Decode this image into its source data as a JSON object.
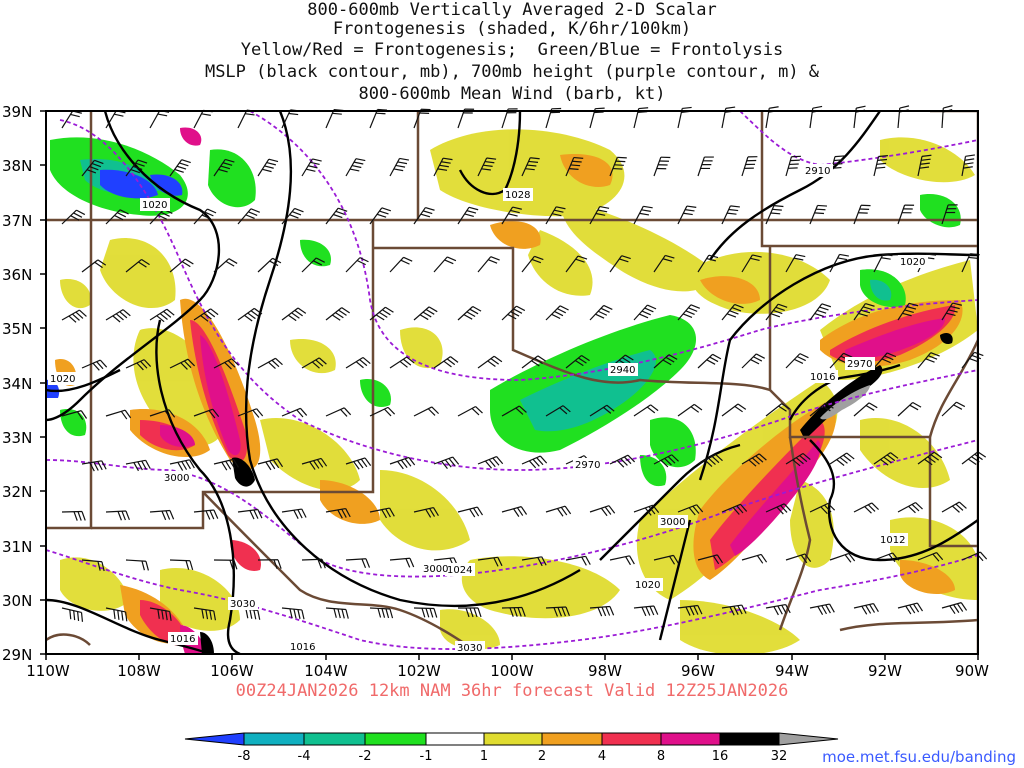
{
  "title_lines": [
    "800-600mb Vertically Averaged 2-D Scalar",
    "Frontogenesis (shaded, K/6hr/100km)",
    "Yellow/Red = Frontogenesis;  Green/Blue = Frontolysis",
    "MSLP (black contour, mb), 700mb height (purple contour, m) &",
    "800-600mb Mean Wind (barb, kt)"
  ],
  "axes": {
    "lat_labels": [
      "39N",
      "38N",
      "37N",
      "36N",
      "35N",
      "34N",
      "33N",
      "32N",
      "31N",
      "30N",
      "29N"
    ],
    "lon_labels": [
      "110W",
      "108W",
      "106W",
      "104W",
      "102W",
      "100W",
      "98W",
      "96W",
      "94W",
      "92W",
      "90W"
    ]
  },
  "contour_labels": {
    "mslp": [
      "1020",
      "1028",
      "1020",
      "1020",
      "1016",
      "1024",
      "1020",
      "1012",
      "1016",
      "1016"
    ],
    "height_700mb": [
      "2910",
      "2940",
      "2970",
      "3000",
      "3000",
      "3030",
      "3000",
      "2970",
      "3030"
    ]
  },
  "valid_text": "00Z24JAN2026 12km NAM 36hr forecast Valid 12Z25JAN2026",
  "colorbar": {
    "labels": [
      "-8",
      "-4",
      "-2",
      "-1",
      "1",
      "2",
      "4",
      "8",
      "16",
      "32"
    ],
    "colors": [
      "#2040ff",
      "#10b0c0",
      "#10c090",
      "#20e020",
      "#ffffff",
      "#e0dc30",
      "#f0a020",
      "#f03050",
      "#e0108a",
      "#000000",
      "#a0a0a0"
    ]
  },
  "credit": "moe.met.fsu.edu/banding",
  "colors": {
    "mslp_contour": "#000000",
    "height_contour": "#9b1bd6",
    "borders": "#6b4a35",
    "valid_text": "#f06a6a"
  }
}
